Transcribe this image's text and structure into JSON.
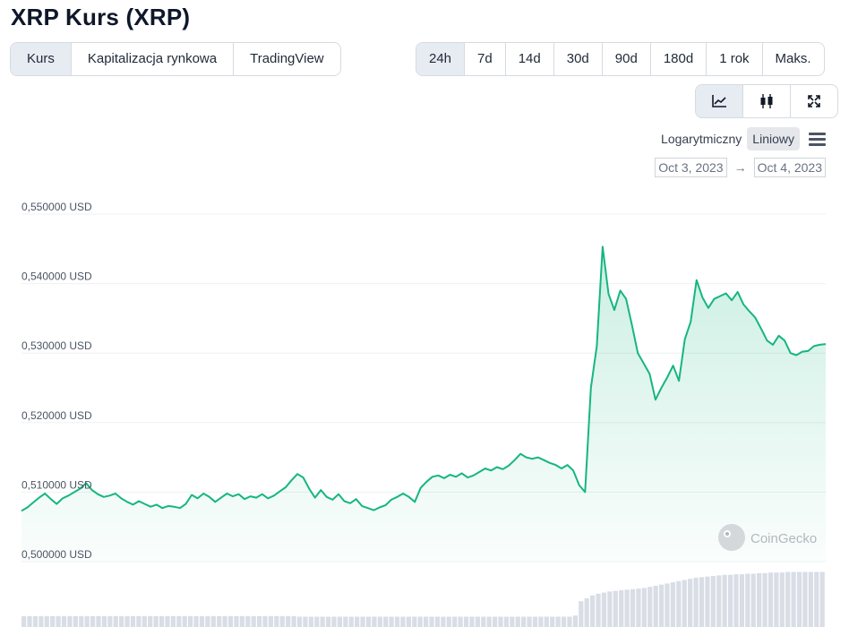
{
  "header": {
    "title": "XRP Kurs (XRP)"
  },
  "chart_tabs": [
    {
      "label": "Kurs",
      "active": true
    },
    {
      "label": "Kapitalizacja rynkowa",
      "active": false
    },
    {
      "label": "TradingView",
      "active": false
    }
  ],
  "range_tabs": [
    {
      "label": "24h",
      "active": true
    },
    {
      "label": "7d",
      "active": false
    },
    {
      "label": "14d",
      "active": false
    },
    {
      "label": "30d",
      "active": false
    },
    {
      "label": "90d",
      "active": false
    },
    {
      "label": "180d",
      "active": false
    },
    {
      "label": "1 rok",
      "active": false
    },
    {
      "label": "Maks.",
      "active": false
    }
  ],
  "view_toggle": {
    "line_icon": "line-chart-icon",
    "candle_icon": "candlestick-icon",
    "expand_icon": "expand-icon",
    "active": "line"
  },
  "scale": {
    "log_label": "Logarytmiczny",
    "linear_label": "Liniowy",
    "active": "linear"
  },
  "date_range": {
    "from": "Oct 3, 2023",
    "arrow": "→",
    "to": "Oct 4, 2023"
  },
  "watermark": {
    "text": "CoinGecko"
  },
  "colors": {
    "line": "#16b67f",
    "fill": "#d7f2e3",
    "volume": "#d8dde6",
    "grid": "#eef0f3",
    "active_tab": "#e7ebf2"
  },
  "chart_data": {
    "type": "area",
    "ylim": [
      0.5,
      0.55
    ],
    "yticks": [
      0.5,
      0.51,
      0.52,
      0.53,
      0.54,
      0.55
    ],
    "ytick_labels": [
      "0,500000 USD",
      "0,510000 USD",
      "0,520000 USD",
      "0,530000 USD",
      "0,540000 USD",
      "0,550000 USD"
    ],
    "grid": true,
    "series": [
      {
        "values": [
          0.5073,
          0.5078,
          0.5085,
          0.5092,
          0.5098,
          0.509,
          0.5083,
          0.5091,
          0.5095,
          0.51,
          0.5105,
          0.5113,
          0.5103,
          0.5097,
          0.5093,
          0.5095,
          0.5098,
          0.5091,
          0.5086,
          0.5082,
          0.5087,
          0.5083,
          0.5079,
          0.5082,
          0.5077,
          0.508,
          0.5079,
          0.5077,
          0.5083,
          0.5096,
          0.5091,
          0.5098,
          0.5093,
          0.5086,
          0.5092,
          0.5098,
          0.5094,
          0.5097,
          0.509,
          0.5094,
          0.5092,
          0.5097,
          0.5091,
          0.5095,
          0.5101,
          0.5107,
          0.5117,
          0.5126,
          0.5121,
          0.5105,
          0.5092,
          0.5103,
          0.5093,
          0.5089,
          0.5097,
          0.5087,
          0.5084,
          0.509,
          0.508,
          0.5077,
          0.5074,
          0.5078,
          0.5081,
          0.5089,
          0.5093,
          0.5098,
          0.5093,
          0.5086,
          0.5106,
          0.5115,
          0.5122,
          0.5124,
          0.512,
          0.5125,
          0.5122,
          0.5127,
          0.5121,
          0.5124,
          0.5129,
          0.5134,
          0.5131,
          0.5136,
          0.5133,
          0.5138,
          0.5146,
          0.5155,
          0.515,
          0.5148,
          0.515,
          0.5146,
          0.5142,
          0.5139,
          0.5134,
          0.5139,
          0.5131,
          0.511,
          0.51,
          0.525,
          0.531,
          0.5453,
          0.5385,
          0.5362,
          0.539,
          0.5378,
          0.534,
          0.53,
          0.5285,
          0.527,
          0.5233,
          0.525,
          0.5265,
          0.5282,
          0.526,
          0.532,
          0.5345,
          0.5405,
          0.538,
          0.5365,
          0.5378,
          0.5382,
          0.5386,
          0.5376,
          0.5388,
          0.537,
          0.536,
          0.5351,
          0.5335,
          0.5318,
          0.5312,
          0.5325,
          0.5318,
          0.53,
          0.5297,
          0.5302,
          0.5303,
          0.531,
          0.5312,
          0.5313
        ]
      }
    ],
    "volume": [
      0.19,
      0.19,
      0.19,
      0.19,
      0.19,
      0.19,
      0.19,
      0.19,
      0.19,
      0.19,
      0.19,
      0.19,
      0.19,
      0.19,
      0.19,
      0.19,
      0.19,
      0.19,
      0.19,
      0.19,
      0.19,
      0.19,
      0.19,
      0.19,
      0.19,
      0.19,
      0.19,
      0.19,
      0.19,
      0.19,
      0.19,
      0.19,
      0.19,
      0.19,
      0.19,
      0.19,
      0.19,
      0.19,
      0.19,
      0.19,
      0.19,
      0.19,
      0.19,
      0.19,
      0.19,
      0.19,
      0.19,
      0.19,
      0.18,
      0.18,
      0.18,
      0.18,
      0.18,
      0.18,
      0.18,
      0.18,
      0.18,
      0.18,
      0.18,
      0.18,
      0.18,
      0.18,
      0.18,
      0.18,
      0.18,
      0.18,
      0.18,
      0.18,
      0.18,
      0.18,
      0.18,
      0.18,
      0.18,
      0.18,
      0.18,
      0.18,
      0.18,
      0.18,
      0.18,
      0.18,
      0.18,
      0.18,
      0.18,
      0.18,
      0.18,
      0.18,
      0.18,
      0.18,
      0.18,
      0.18,
      0.18,
      0.18,
      0.18,
      0.18,
      0.18,
      0.18,
      0.2,
      0.45,
      0.5,
      0.55,
      0.58,
      0.6,
      0.62,
      0.63,
      0.64,
      0.65,
      0.66,
      0.67,
      0.68,
      0.7,
      0.72,
      0.74,
      0.76,
      0.78,
      0.8,
      0.82,
      0.84,
      0.86,
      0.87,
      0.88,
      0.89,
      0.9,
      0.91,
      0.91,
      0.92,
      0.92,
      0.93,
      0.93,
      0.94,
      0.94,
      0.95,
      0.95,
      0.95,
      0.96,
      0.96,
      0.96,
      0.96,
      0.96,
      0.96,
      0.96
    ]
  }
}
